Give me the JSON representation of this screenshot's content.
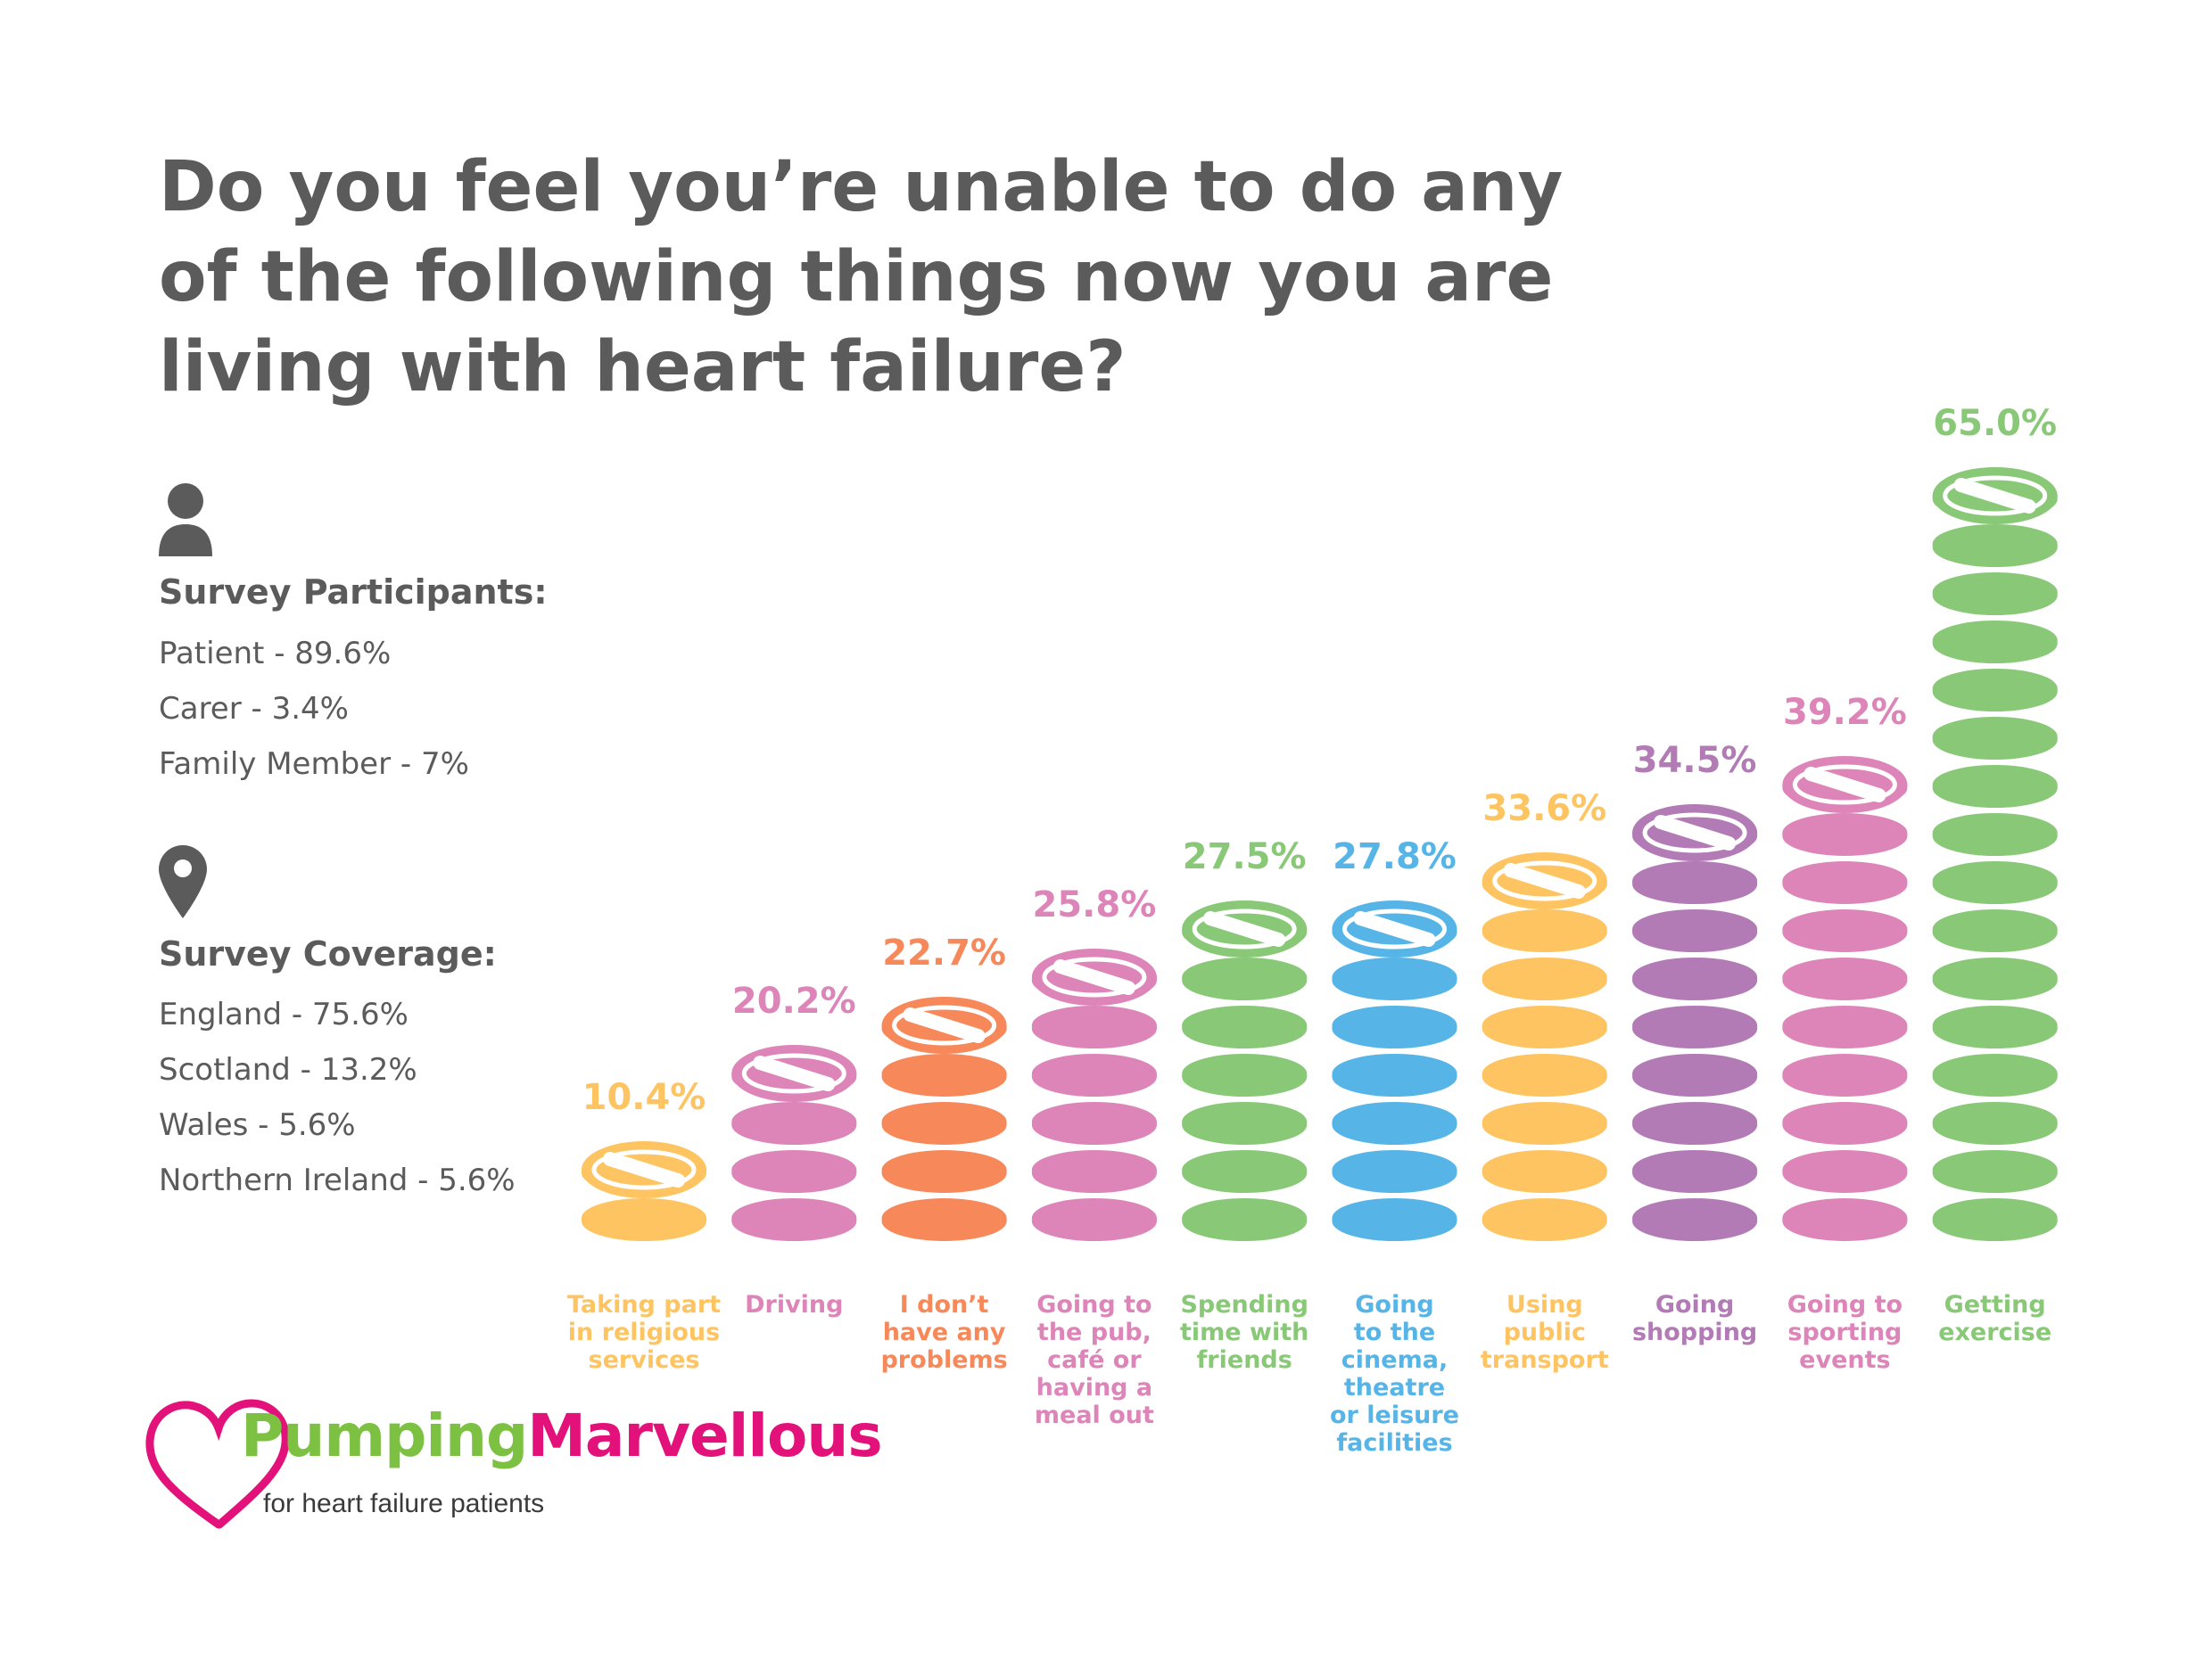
{
  "title": "Do you feel you’re unable to do any of the following things now you are living with heart failure?",
  "participants": {
    "icon": "person-icon",
    "heading": "Survey Participants:",
    "items": [
      "Patient - 89.6%",
      "Carer - 3.4%",
      "Family Member - 7%"
    ]
  },
  "coverage": {
    "icon": "location-pin-icon",
    "heading": "Survey Coverage:",
    "items": [
      "England - 75.6%",
      "Scotland - 13.2%",
      "Wales - 5.6%",
      "Northern Ireland - 5.6%"
    ]
  },
  "logo": {
    "icon": "heart-icon",
    "name_part1": "Pumping",
    "name_part2": "Marvellous",
    "tagline": "for heart failure patients",
    "colors": {
      "heart": "#e3127b",
      "part1": "#7cc142",
      "part2": "#e3127b"
    }
  },
  "chart_data": {
    "type": "bar",
    "style": "stacked pill icons",
    "categories": [
      [
        "Taking part",
        "in religious",
        "services"
      ],
      [
        "Driving"
      ],
      [
        "I don’t",
        "have any",
        "problems"
      ],
      [
        "Going to",
        "the pub,",
        "café or",
        "having a",
        "meal out"
      ],
      [
        "Spending",
        "time with",
        "friends"
      ],
      [
        "Going",
        "to the",
        "cinema,",
        "theatre",
        "or leisure",
        "facilities"
      ],
      [
        "Using",
        "public",
        "transport"
      ],
      [
        "Going",
        "shopping"
      ],
      [
        "Going to",
        "sporting",
        "events"
      ],
      [
        "Getting",
        "exercise"
      ]
    ],
    "values": [
      10.4,
      20.2,
      22.7,
      25.8,
      27.5,
      27.8,
      33.6,
      34.5,
      39.2,
      65.0
    ],
    "value_labels": [
      "10.4%",
      "20.2%",
      "22.7%",
      "25.8%",
      "27.5%",
      "27.8%",
      "33.6%",
      "34.5%",
      "39.2%",
      "65.0%"
    ],
    "pill_counts": [
      2,
      4,
      5,
      6,
      7,
      7,
      8,
      9,
      10,
      16
    ],
    "colors": [
      "#fdc461",
      "#dd84b8",
      "#f6885a",
      "#dd84b8",
      "#88c877",
      "#56b5e6",
      "#fdc461",
      "#b27bb5",
      "#dd84b8",
      "#88c877"
    ],
    "ylim": [
      0,
      65
    ],
    "grid": false,
    "legend": "none"
  }
}
